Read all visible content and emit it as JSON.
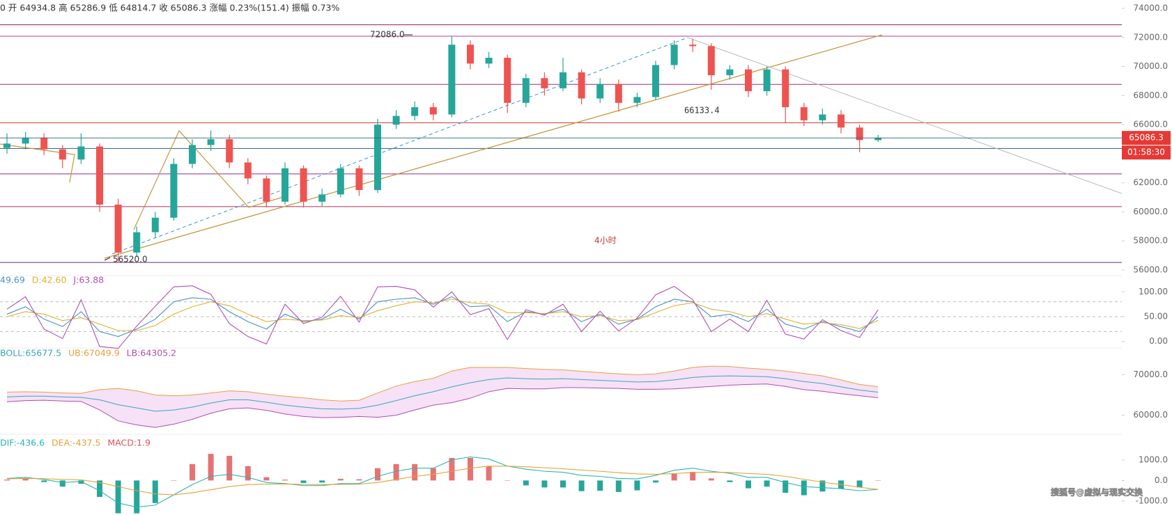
{
  "header": "0 开 64934.8 高 65286.9 低 64814.7 收 65086.3 涨幅 0.23%(151.4) 振幅 0.73%",
  "watermark": "搜狐号@虚拟与现实交换",
  "chart_data": [
    {
      "type": "candlestick",
      "open": [
        64400,
        64700,
        65100,
        64300,
        63600,
        64500,
        60500,
        57200,
        58600,
        59600,
        63300,
        64600,
        65000,
        63400,
        62300,
        60700,
        63000,
        60700,
        61200,
        63000,
        61500,
        66000,
        66600,
        67200,
        66700,
        71500,
        70200,
        70600,
        67500,
        69200,
        68500,
        69600,
        67800,
        68800,
        67500,
        67900,
        70100,
        71500,
        71400,
        69400,
        69800,
        68300,
        69800,
        67200,
        66300,
        66700,
        65800,
        64934.8
      ],
      "high": [
        65400,
        65500,
        65400,
        64600,
        65400,
        64700,
        60900,
        59000,
        60000,
        63700,
        65000,
        65600,
        65300,
        63700,
        62500,
        63400,
        63200,
        61600,
        63300,
        63200,
        66400,
        67000,
        67600,
        67500,
        72086,
        71800,
        71000,
        70800,
        69500,
        69600,
        70600,
        69800,
        69200,
        69100,
        68200,
        70400,
        71800,
        71900,
        71600,
        70100,
        70100,
        70000,
        70000,
        67500,
        67100,
        67000,
        66000,
        65286.9
      ],
      "low": [
        64000,
        64300,
        63900,
        63000,
        63300,
        60000,
        56520,
        56900,
        58200,
        59400,
        63000,
        64200,
        63000,
        61900,
        60300,
        60500,
        60300,
        60400,
        61000,
        61100,
        61300,
        65700,
        66300,
        66300,
        66500,
        69800,
        69900,
        66800,
        67200,
        68000,
        68300,
        67400,
        67500,
        66900,
        67200,
        67700,
        69800,
        71000,
        68400,
        69100,
        67900,
        68000,
        66133.4,
        65900,
        66000,
        65400,
        64100,
        64814.7
      ],
      "close": [
        64700,
        65100,
        64300,
        63600,
        64500,
        60500,
        57200,
        58600,
        59600,
        63300,
        64600,
        65000,
        63400,
        62300,
        60700,
        63000,
        60700,
        61200,
        63000,
        61500,
        66000,
        66600,
        67200,
        66700,
        71500,
        70200,
        70600,
        67500,
        69200,
        68500,
        69600,
        67800,
        68800,
        67500,
        67900,
        70100,
        71500,
        71400,
        69400,
        69800,
        68300,
        69800,
        67200,
        66300,
        66700,
        65800,
        64934.8,
        65086.3
      ],
      "up_color": "#26a69a",
      "down_color": "#ef5350",
      "ylim": [
        56000,
        74000
      ],
      "yticks": [
        {
          "value": 56000,
          "label": "56000.0"
        },
        {
          "value": 58000,
          "label": "58000.0"
        },
        {
          "value": 60000,
          "label": "60000.0"
        },
        {
          "value": 62000,
          "label": "62000.0"
        },
        {
          "value": 64000,
          "label": "64000.0"
        },
        {
          "value": 66000,
          "label": "66000.0"
        },
        {
          "value": 68000,
          "label": "68000.0"
        },
        {
          "value": 70000,
          "label": "70000.0"
        },
        {
          "value": 72000,
          "label": "72000.0"
        },
        {
          "value": 74000,
          "label": "74000.0"
        }
      ],
      "levels": [
        72870,
        72086,
        68770,
        66133.4,
        64360,
        62615,
        60360,
        56520
      ],
      "level_colors": [
        "#8b2252",
        "#b0409a",
        "#9c2a7a",
        "#c0392b",
        "#2f5f7a",
        "#8e2a8e",
        "#b03050",
        "#6a2a7a"
      ],
      "countdown": "01:58:30",
      "annotations": [
        "72086.0",
        "66133.4",
        "56520.0"
      ],
      "timeframe": "4小时"
    },
    {
      "type": "line",
      "ylim": [
        -20,
        120
      ],
      "yticks": [
        {
          "value": 0,
          "label": "0.00"
        },
        {
          "value": 50,
          "label": "50.00"
        },
        {
          "value": 100,
          "label": "100.00"
        }
      ],
      "reference_lines": [
        20,
        50,
        80
      ],
      "series": [
        {
          "name": "49.69",
          "color": "#4a90c8",
          "values": [
            55,
            70,
            45,
            30,
            60,
            20,
            10,
            25,
            45,
            80,
            88,
            85,
            60,
            40,
            25,
            55,
            40,
            45,
            65,
            45,
            80,
            85,
            88,
            75,
            90,
            70,
            72,
            40,
            60,
            55,
            65,
            40,
            55,
            35,
            45,
            70,
            85,
            80,
            50,
            55,
            40,
            65,
            35,
            25,
            40,
            30,
            20,
            49.69
          ]
        },
        {
          "name": "D:42.60",
          "color": "#e0b030",
          "values": [
            50,
            60,
            55,
            42,
            48,
            35,
            22,
            22,
            32,
            55,
            70,
            80,
            72,
            55,
            40,
            45,
            42,
            43,
            52,
            48,
            62,
            72,
            80,
            78,
            85,
            78,
            75,
            58,
            58,
            56,
            60,
            50,
            52,
            42,
            44,
            58,
            72,
            78,
            65,
            60,
            50,
            56,
            45,
            35,
            38,
            34,
            26,
            42.6
          ]
        },
        {
          "name": "J:63.88",
          "color": "#b04fb0",
          "values": [
            65,
            90,
            25,
            6,
            84,
            -10,
            -14,
            31,
            71,
            110,
            112,
            95,
            36,
            10,
            -5,
            75,
            36,
            49,
            91,
            39,
            110,
            111,
            104,
            69,
            100,
            54,
            66,
            4,
            64,
            53,
            75,
            20,
            61,
            21,
            47,
            94,
            111,
            84,
            20,
            45,
            20,
            83,
            15,
            5,
            44,
            22,
            8,
            63.88
          ]
        }
      ]
    },
    {
      "type": "band",
      "ylim": [
        56000,
        74000
      ],
      "yticks": [
        {
          "value": 60000,
          "label": "60000.0"
        },
        {
          "value": 70000,
          "label": "70000.0"
        }
      ],
      "fill": "#f4dcf6",
      "series": [
        {
          "name": "BOLL:65677.5",
          "color": "#3aa6b9",
          "values": [
            64500,
            64700,
            64700,
            64500,
            64400,
            63800,
            62600,
            61800,
            61000,
            61300,
            62000,
            63000,
            63800,
            63800,
            63200,
            62500,
            62000,
            61600,
            61500,
            61700,
            62500,
            63600,
            64800,
            65800,
            67000,
            68000,
            68800,
            69200,
            69000,
            68900,
            69000,
            68800,
            68600,
            68400,
            68200,
            68300,
            68700,
            69300,
            69600,
            69700,
            69600,
            69500,
            69000,
            68300,
            67800,
            67000,
            66200,
            65677.5
          ]
        },
        {
          "name": "UB:67049.9",
          "color": "#e8a040",
          "values": [
            65700,
            65800,
            65700,
            65500,
            65400,
            66300,
            66600,
            66000,
            65000,
            64800,
            65000,
            65500,
            66000,
            65800,
            65200,
            64700,
            64300,
            63800,
            63500,
            63700,
            65500,
            67200,
            68300,
            69100,
            70900,
            71800,
            71800,
            71800,
            71500,
            71300,
            71200,
            70800,
            70500,
            70200,
            70000,
            70200,
            70900,
            71800,
            72100,
            72000,
            71600,
            71300,
            70900,
            70300,
            69700,
            68700,
            67600,
            67049.9
          ]
        },
        {
          "name": "LB:64305.2",
          "color": "#b04fb0",
          "values": [
            63300,
            63600,
            63700,
            63500,
            63400,
            61300,
            58600,
            57600,
            57000,
            57800,
            59000,
            60500,
            61600,
            61800,
            61200,
            60300,
            59700,
            59400,
            59500,
            59700,
            59500,
            60000,
            61300,
            62500,
            63100,
            64200,
            65800,
            66600,
            66500,
            66500,
            66800,
            66800,
            66700,
            66600,
            66400,
            66400,
            66500,
            66800,
            67100,
            67400,
            67600,
            67700,
            67100,
            66300,
            65900,
            65300,
            64800,
            64305.2
          ]
        }
      ]
    },
    {
      "type": "combo",
      "ylim": [
        -1650,
        2050
      ],
      "yticks": [
        {
          "value": -1000,
          "label": "-1000.0"
        },
        {
          "value": 0,
          "label": "0.0"
        },
        {
          "value": 1000,
          "label": "1000.0"
        }
      ],
      "up_color": "#e57373",
      "down_color": "#26a69a",
      "series": [
        {
          "name": "DIF:-436.6",
          "color": "#2bb5b0",
          "kind": "line",
          "values": [
            100,
            150,
            50,
            -100,
            -50,
            -500,
            -1100,
            -1300,
            -1200,
            -700,
            -200,
            200,
            300,
            150,
            -100,
            -150,
            -250,
            -250,
            -150,
            -150,
            200,
            450,
            600,
            600,
            1000,
            1150,
            1050,
            700,
            550,
            450,
            400,
            250,
            200,
            100,
            80,
            250,
            500,
            600,
            450,
            350,
            150,
            150,
            -100,
            -300,
            -350,
            -400,
            -500,
            -436.6
          ]
        },
        {
          "name": "DEA:-437.5",
          "color": "#e3a13a",
          "kind": "line",
          "values": [
            80,
            100,
            90,
            50,
            30,
            -100,
            -300,
            -500,
            -650,
            -700,
            -600,
            -450,
            -300,
            -200,
            -180,
            -170,
            -190,
            -200,
            -190,
            -180,
            -100,
            50,
            200,
            300,
            450,
            600,
            700,
            700,
            670,
            620,
            570,
            510,
            450,
            380,
            320,
            300,
            340,
            390,
            400,
            390,
            340,
            300,
            200,
            60,
            -80,
            -200,
            -330,
            -437.5
          ]
        },
        {
          "name": "MACD:1.9",
          "color": "#e05060",
          "kind": "bar",
          "values": [
            40,
            100,
            -80,
            -300,
            -160,
            -800,
            -1600,
            -1600,
            -1100,
            0,
            800,
            1300,
            1200,
            700,
            160,
            40,
            -120,
            -100,
            80,
            60,
            600,
            800,
            800,
            600,
            1100,
            1100,
            700,
            0,
            -240,
            -340,
            -340,
            -520,
            -500,
            -560,
            -480,
            -100,
            320,
            420,
            100,
            -80,
            -380,
            -300,
            -600,
            -720,
            -540,
            -400,
            -340,
            1.9
          ]
        }
      ]
    }
  ]
}
